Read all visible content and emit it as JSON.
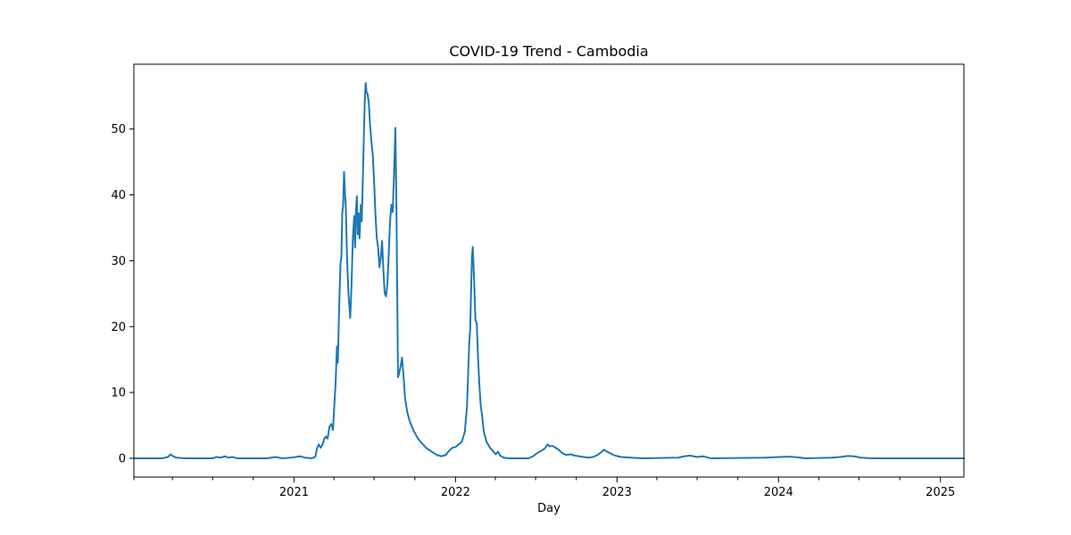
{
  "chart_data": {
    "type": "line",
    "title": "COVID-19 Trend - Cambodia",
    "xlabel": "Day",
    "ylabel": "",
    "x_type": "date",
    "xlim": [
      "2020-01-05",
      "2025-02-23"
    ],
    "ylim": [
      -2.85,
      59.85
    ],
    "y_ticks": [
      0,
      10,
      20,
      30,
      40,
      50
    ],
    "x_ticks": [
      {
        "date": "2021-01-01",
        "label": "2021"
      },
      {
        "date": "2022-01-01",
        "label": "2022"
      },
      {
        "date": "2023-01-01",
        "label": "2023"
      },
      {
        "date": "2024-01-01",
        "label": "2024"
      },
      {
        "date": "2025-01-01",
        "label": "2025"
      }
    ],
    "x_minor_ticks": [
      "2020-01-05",
      "2020-04-01",
      "2020-07-01",
      "2020-10-01",
      "2021-04-01",
      "2021-07-01",
      "2021-10-01",
      "2022-04-01",
      "2022-07-01",
      "2022-10-01",
      "2023-04-01",
      "2023-07-01",
      "2023-10-01",
      "2024-04-01",
      "2024-07-01",
      "2024-10-01"
    ],
    "grid": false,
    "legend": "none",
    "series": [
      {
        "name": "",
        "color": "#1f77b4",
        "points": [
          [
            "2020-01-05",
            0
          ],
          [
            "2020-03-10",
            0
          ],
          [
            "2020-03-22",
            0.2
          ],
          [
            "2020-03-28",
            0.6
          ],
          [
            "2020-04-03",
            0.3
          ],
          [
            "2020-04-10",
            0.1
          ],
          [
            "2020-05-01",
            0
          ],
          [
            "2020-07-01",
            0
          ],
          [
            "2020-07-10",
            0.2
          ],
          [
            "2020-07-20",
            0.1
          ],
          [
            "2020-07-28",
            0.3
          ],
          [
            "2020-08-05",
            0.1
          ],
          [
            "2020-08-15",
            0.2
          ],
          [
            "2020-08-25",
            0
          ],
          [
            "2020-11-01",
            0
          ],
          [
            "2020-11-20",
            0.2
          ],
          [
            "2020-12-05",
            0
          ],
          [
            "2020-12-25",
            0.1
          ],
          [
            "2021-01-05",
            0.2
          ],
          [
            "2021-01-15",
            0.3
          ],
          [
            "2021-01-25",
            0.1
          ],
          [
            "2021-02-10",
            0
          ],
          [
            "2021-02-18",
            0.2
          ],
          [
            "2021-02-22",
            1.5
          ],
          [
            "2021-02-26",
            2.1
          ],
          [
            "2021-03-02",
            1.6
          ],
          [
            "2021-03-06",
            2.0
          ],
          [
            "2021-03-10",
            2.9
          ],
          [
            "2021-03-14",
            3.3
          ],
          [
            "2021-03-18",
            3.0
          ],
          [
            "2021-03-22",
            4.8
          ],
          [
            "2021-03-26",
            5.2
          ],
          [
            "2021-03-30",
            4.3
          ],
          [
            "2021-04-02",
            8.0
          ],
          [
            "2021-04-05",
            11.5
          ],
          [
            "2021-04-08",
            17.0
          ],
          [
            "2021-04-10",
            14.5
          ],
          [
            "2021-04-13",
            23.0
          ],
          [
            "2021-04-16",
            29.6
          ],
          [
            "2021-04-18",
            30.5
          ],
          [
            "2021-04-20",
            37.2
          ],
          [
            "2021-04-22",
            38.5
          ],
          [
            "2021-04-24",
            43.5
          ],
          [
            "2021-04-26",
            40.5
          ],
          [
            "2021-04-28",
            38.2
          ],
          [
            "2021-05-01",
            30.0
          ],
          [
            "2021-05-04",
            25.0
          ],
          [
            "2021-05-08",
            21.3
          ],
          [
            "2021-05-11",
            26.5
          ],
          [
            "2021-05-14",
            33.5
          ],
          [
            "2021-05-17",
            36.8
          ],
          [
            "2021-05-19",
            32.0
          ],
          [
            "2021-05-21",
            37.5
          ],
          [
            "2021-05-23",
            39.8
          ],
          [
            "2021-05-25",
            34.0
          ],
          [
            "2021-05-27",
            37.2
          ],
          [
            "2021-05-29",
            33.4
          ],
          [
            "2021-06-01",
            38.5
          ],
          [
            "2021-06-03",
            36.0
          ],
          [
            "2021-06-05",
            41.0
          ],
          [
            "2021-06-08",
            49.5
          ],
          [
            "2021-06-10",
            54.5
          ],
          [
            "2021-06-12",
            57.0
          ],
          [
            "2021-06-14",
            55.5
          ],
          [
            "2021-06-16",
            55.4
          ],
          [
            "2021-06-19",
            54.0
          ],
          [
            "2021-06-22",
            50.5
          ],
          [
            "2021-06-25",
            48.0
          ],
          [
            "2021-06-28",
            46.0
          ],
          [
            "2021-07-01",
            42.0
          ],
          [
            "2021-07-04",
            37.0
          ],
          [
            "2021-07-07",
            33.5
          ],
          [
            "2021-07-10",
            32.0
          ],
          [
            "2021-07-13",
            29.0
          ],
          [
            "2021-07-16",
            30.5
          ],
          [
            "2021-07-19",
            33.0
          ],
          [
            "2021-07-22",
            28.5
          ],
          [
            "2021-07-25",
            25.0
          ],
          [
            "2021-07-28",
            24.6
          ],
          [
            "2021-07-31",
            26.5
          ],
          [
            "2021-08-03",
            31.0
          ],
          [
            "2021-08-06",
            36.0
          ],
          [
            "2021-08-09",
            38.5
          ],
          [
            "2021-08-12",
            37.4
          ],
          [
            "2021-08-15",
            43.0
          ],
          [
            "2021-08-18",
            50.2
          ],
          [
            "2021-08-20",
            41.0
          ],
          [
            "2021-08-22",
            27.0
          ],
          [
            "2021-08-24",
            12.3
          ],
          [
            "2021-08-27",
            13.0
          ],
          [
            "2021-08-30",
            14.0
          ],
          [
            "2021-09-02",
            15.3
          ],
          [
            "2021-09-05",
            13.0
          ],
          [
            "2021-09-09",
            9.0
          ],
          [
            "2021-09-14",
            7.0
          ],
          [
            "2021-09-20",
            5.5
          ],
          [
            "2021-09-28",
            4.2
          ],
          [
            "2021-10-08",
            3.0
          ],
          [
            "2021-10-18",
            2.2
          ],
          [
            "2021-10-28",
            1.5
          ],
          [
            "2021-11-08",
            1.0
          ],
          [
            "2021-11-20",
            0.5
          ],
          [
            "2021-11-30",
            0.3
          ],
          [
            "2021-12-10",
            0.5
          ],
          [
            "2021-12-18",
            1.2
          ],
          [
            "2021-12-25",
            1.6
          ],
          [
            "2022-01-01",
            1.7
          ],
          [
            "2022-01-08",
            2.1
          ],
          [
            "2022-01-15",
            2.5
          ],
          [
            "2022-01-22",
            4.0
          ],
          [
            "2022-01-27",
            8.0
          ],
          [
            "2022-02-01",
            17.5
          ],
          [
            "2022-02-03",
            19.5
          ],
          [
            "2022-02-05",
            25.0
          ],
          [
            "2022-02-07",
            30.5
          ],
          [
            "2022-02-09",
            32.1
          ],
          [
            "2022-02-12",
            27.0
          ],
          [
            "2022-02-15",
            21.0
          ],
          [
            "2022-02-18",
            20.5
          ],
          [
            "2022-02-21",
            15.0
          ],
          [
            "2022-02-24",
            11.0
          ],
          [
            "2022-02-27",
            8.0
          ],
          [
            "2022-03-02",
            6.5
          ],
          [
            "2022-03-06",
            4.0
          ],
          [
            "2022-03-12",
            2.5
          ],
          [
            "2022-03-20",
            1.6
          ],
          [
            "2022-03-28",
            1.0
          ],
          [
            "2022-04-02",
            0.6
          ],
          [
            "2022-04-07",
            1.0
          ],
          [
            "2022-04-12",
            0.4
          ],
          [
            "2022-04-20",
            0.1
          ],
          [
            "2022-05-01",
            0
          ],
          [
            "2022-06-15",
            0
          ],
          [
            "2022-06-25",
            0.3
          ],
          [
            "2022-07-05",
            0.8
          ],
          [
            "2022-07-15",
            1.2
          ],
          [
            "2022-07-22",
            1.5
          ],
          [
            "2022-07-28",
            2.1
          ],
          [
            "2022-08-02",
            1.8
          ],
          [
            "2022-08-08",
            1.9
          ],
          [
            "2022-08-15",
            1.6
          ],
          [
            "2022-08-22",
            1.3
          ],
          [
            "2022-08-30",
            0.8
          ],
          [
            "2022-09-08",
            0.5
          ],
          [
            "2022-09-18",
            0.6
          ],
          [
            "2022-09-28",
            0.4
          ],
          [
            "2022-10-08",
            0.3
          ],
          [
            "2022-10-18",
            0.2
          ],
          [
            "2022-10-28",
            0.1
          ],
          [
            "2022-11-08",
            0.2
          ],
          [
            "2022-11-18",
            0.5
          ],
          [
            "2022-11-26",
            0.9
          ],
          [
            "2022-12-02",
            1.3
          ],
          [
            "2022-12-10",
            1.0
          ],
          [
            "2022-12-18",
            0.7
          ],
          [
            "2022-12-28",
            0.4
          ],
          [
            "2023-01-10",
            0.2
          ],
          [
            "2023-02-01",
            0.1
          ],
          [
            "2023-03-01",
            0
          ],
          [
            "2023-05-20",
            0.1
          ],
          [
            "2023-06-01",
            0.3
          ],
          [
            "2023-06-15",
            0.4
          ],
          [
            "2023-07-01",
            0.2
          ],
          [
            "2023-07-15",
            0.3
          ],
          [
            "2023-08-01",
            0
          ],
          [
            "2023-12-01",
            0.1
          ],
          [
            "2024-01-05",
            0.2
          ],
          [
            "2024-01-20",
            0.25
          ],
          [
            "2024-02-05",
            0.2
          ],
          [
            "2024-02-20",
            0.1
          ],
          [
            "2024-03-01",
            0
          ],
          [
            "2024-05-01",
            0.1
          ],
          [
            "2024-05-20",
            0.2
          ],
          [
            "2024-06-05",
            0.35
          ],
          [
            "2024-06-20",
            0.3
          ],
          [
            "2024-07-05",
            0.1
          ],
          [
            "2024-08-01",
            0
          ],
          [
            "2025-02-23",
            0
          ]
        ]
      }
    ]
  }
}
